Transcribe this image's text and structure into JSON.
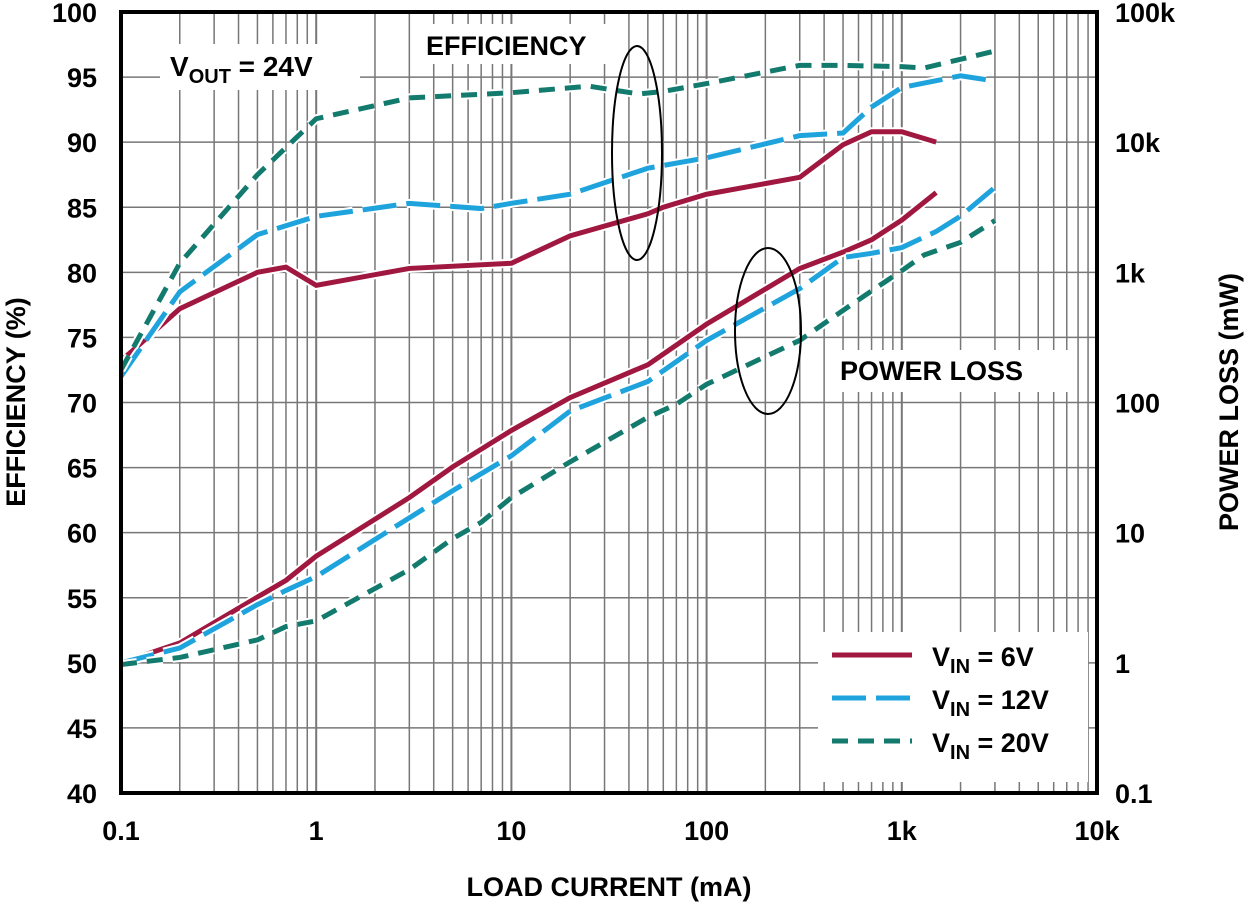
{
  "chart_data": {
    "type": "line",
    "xlabel": "LOAD CURRENT (mA)",
    "ylabel": "EFFICIENCY (%)",
    "y2label": "POWER LOSS (mW)",
    "x_scale": "log",
    "xlim": [
      0.1,
      10000
    ],
    "ylim": [
      40,
      100
    ],
    "y2_scale": "log",
    "y2lim": [
      0.1,
      100000
    ],
    "grid": true,
    "legend_position": "bottom-right",
    "x_ticks": [
      "0.1",
      "1",
      "10",
      "100",
      "1k",
      "10k"
    ],
    "y_ticks": [
      "40",
      "45",
      "50",
      "55",
      "60",
      "65",
      "70",
      "75",
      "80",
      "85",
      "90",
      "95",
      "100"
    ],
    "y2_ticks": [
      "0.1",
      "1",
      "10",
      "100",
      "1k",
      "10k",
      "100k"
    ],
    "annotations": {
      "vout": {
        "main": "V",
        "sub": "OUT",
        "rest": " = 24V"
      },
      "efficiency": "EFFICIENCY",
      "power_loss": "POWER LOSS"
    },
    "series": [
      {
        "name": "VIN = 6V",
        "label_main": "V",
        "label_sub": "IN",
        "label_rest": " = 6V",
        "color": "#a0173f",
        "dash": "solid",
        "efficiency": [
          [
            0.1,
            73.2
          ],
          [
            0.2,
            77.2
          ],
          [
            0.5,
            80
          ],
          [
            0.7,
            80.4
          ],
          [
            1,
            79
          ],
          [
            3,
            80.3
          ],
          [
            10,
            80.7
          ],
          [
            20,
            82.8
          ],
          [
            50,
            84.5
          ],
          [
            60,
            85
          ],
          [
            100,
            86
          ],
          [
            300,
            87.3
          ],
          [
            500,
            89.8
          ],
          [
            700,
            90.8
          ],
          [
            1000,
            90.8
          ],
          [
            1500,
            90
          ]
        ],
        "power_loss": [
          [
            0.1,
            1
          ],
          [
            0.2,
            1.42
          ],
          [
            0.5,
            3.2
          ],
          [
            0.7,
            4.3
          ],
          [
            1,
            6.6
          ],
          [
            3,
            18.6
          ],
          [
            5,
            32
          ],
          [
            10,
            61
          ],
          [
            20,
            109
          ],
          [
            50,
            195
          ],
          [
            100,
            400
          ],
          [
            300,
            1070
          ],
          [
            500,
            1430
          ],
          [
            700,
            1780
          ],
          [
            1000,
            2520
          ],
          [
            1500,
            4100
          ]
        ]
      },
      {
        "name": "VIN = 12V",
        "label_main": "V",
        "label_sub": "IN",
        "label_rest": " = 12V",
        "color": "#1fa3dc",
        "dash": "long-dash",
        "efficiency": [
          [
            0.1,
            72
          ],
          [
            0.2,
            78.5
          ],
          [
            0.5,
            82.9
          ],
          [
            1,
            84.3
          ],
          [
            3,
            85.3
          ],
          [
            7,
            84.9
          ],
          [
            10,
            85.3
          ],
          [
            20,
            86
          ],
          [
            50,
            88
          ],
          [
            100,
            88.8
          ],
          [
            300,
            90.5
          ],
          [
            500,
            90.7
          ],
          [
            700,
            92.7
          ],
          [
            1000,
            94.2
          ],
          [
            2000,
            95.1
          ],
          [
            3000,
            94.7
          ]
        ],
        "power_loss": [
          [
            0.1,
            1
          ],
          [
            0.2,
            1.3
          ],
          [
            0.5,
            2.8
          ],
          [
            0.7,
            3.6
          ],
          [
            1,
            4.6
          ],
          [
            3,
            13
          ],
          [
            5,
            21
          ],
          [
            10,
            39
          ],
          [
            20,
            86
          ],
          [
            50,
            145
          ],
          [
            100,
            300
          ],
          [
            300,
            750
          ],
          [
            500,
            1300
          ],
          [
            700,
            1400
          ],
          [
            1000,
            1550
          ],
          [
            1500,
            2060
          ],
          [
            2000,
            2700
          ],
          [
            3000,
            4500
          ]
        ]
      },
      {
        "name": "VIN = 20V",
        "label_main": "V",
        "label_sub": "IN",
        "label_rest": " = 20V",
        "color": "#137a6e",
        "dash": "short-dash",
        "efficiency": [
          [
            0.1,
            72.5
          ],
          [
            0.2,
            80.7
          ],
          [
            0.5,
            87.5
          ],
          [
            1,
            91.8
          ],
          [
            3,
            93.4
          ],
          [
            10,
            93.8
          ],
          [
            25,
            94.3
          ],
          [
            45,
            93.7
          ],
          [
            60,
            93.9
          ],
          [
            100,
            94.5
          ],
          [
            300,
            95.9
          ],
          [
            500,
            95.9
          ],
          [
            1000,
            95.8
          ],
          [
            1300,
            95.7
          ],
          [
            3000,
            97
          ]
        ],
        "power_loss": [
          [
            0.1,
            0.97
          ],
          [
            0.2,
            1.1
          ],
          [
            0.5,
            1.5
          ],
          [
            0.7,
            1.9
          ],
          [
            1,
            2.1
          ],
          [
            3,
            5.2
          ],
          [
            5,
            9
          ],
          [
            7,
            12
          ],
          [
            10,
            18.6
          ],
          [
            20,
            35
          ],
          [
            50,
            77
          ],
          [
            70,
            97
          ],
          [
            100,
            138
          ],
          [
            300,
            300
          ],
          [
            500,
            510
          ],
          [
            700,
            720
          ],
          [
            1000,
            1030
          ],
          [
            1300,
            1360
          ],
          [
            2000,
            1700
          ],
          [
            3000,
            2500
          ]
        ]
      }
    ]
  }
}
